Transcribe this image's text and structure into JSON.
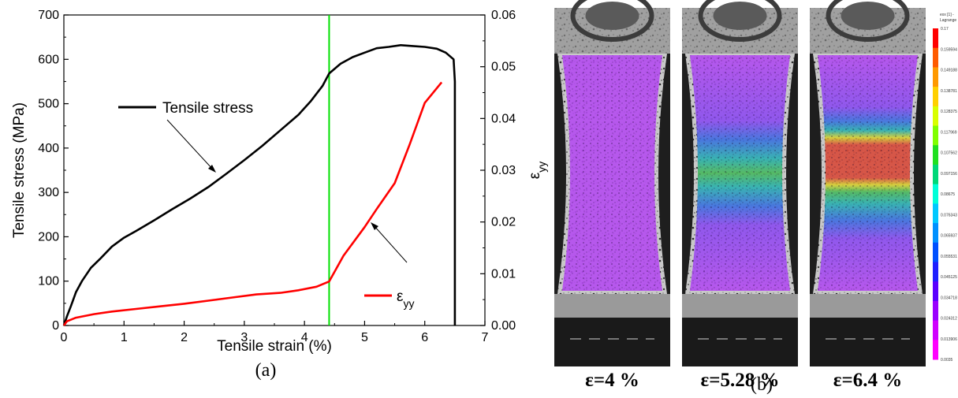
{
  "chart_data": {
    "type": "line",
    "xlabel": "Tensile strain (%)",
    "ylabel": "Tensile stress (MPa)",
    "y2label": "ε",
    "y2label_sub": "yy",
    "xlim": [
      0,
      7
    ],
    "ylim": [
      0,
      700
    ],
    "y2lim": [
      0,
      0.06
    ],
    "xticks": [
      "0",
      "1",
      "2",
      "3",
      "4",
      "5",
      "6",
      "7"
    ],
    "yticks": [
      "0",
      "100",
      "200",
      "300",
      "400",
      "500",
      "600",
      "700"
    ],
    "y2ticks": [
      "0.00",
      "0.01",
      "0.02",
      "0.03",
      "0.04",
      "0.05",
      "0.06"
    ],
    "marker_line_x": 4.41,
    "series": [
      {
        "name": "Tensile stress",
        "axis": "left",
        "color": "#000000",
        "x": [
          0,
          0.05,
          0.12,
          0.2,
          0.3,
          0.45,
          0.6,
          0.8,
          1.0,
          1.2,
          1.5,
          1.8,
          2.1,
          2.4,
          2.7,
          3.0,
          3.3,
          3.6,
          3.9,
          4.1,
          4.3,
          4.41,
          4.6,
          4.8,
          5.0,
          5.2,
          5.4,
          5.6,
          5.8,
          6.0,
          6.2,
          6.35,
          6.48,
          6.5,
          6.5
        ],
        "y": [
          0,
          20,
          45,
          75,
          100,
          130,
          150,
          178,
          198,
          213,
          237,
          262,
          286,
          312,
          342,
          373,
          405,
          440,
          475,
          505,
          540,
          568,
          590,
          605,
          615,
          625,
          628,
          632,
          630,
          628,
          624,
          615,
          600,
          550,
          0
        ]
      },
      {
        "name": "εyy",
        "name_main": "ε",
        "name_sub": "yy",
        "axis": "right",
        "color": "#ff0000",
        "x": [
          0,
          0.05,
          0.2,
          0.5,
          0.8,
          1.2,
          1.6,
          2.0,
          2.4,
          2.8,
          3.2,
          3.6,
          3.9,
          4.2,
          4.41,
          4.65,
          5.0,
          5.2,
          5.5,
          5.75,
          6.0,
          6.28
        ],
        "y": [
          0,
          0.0008,
          0.0015,
          0.0022,
          0.0027,
          0.0032,
          0.0037,
          0.0042,
          0.0048,
          0.0054,
          0.006,
          0.0063,
          0.0068,
          0.0075,
          0.0085,
          0.0135,
          0.019,
          0.0225,
          0.0275,
          0.035,
          0.043,
          0.047
        ]
      }
    ]
  },
  "captions": {
    "a": "(a)",
    "b": "(b)"
  },
  "panels": [
    {
      "label": "ε=4 %",
      "band": "low"
    },
    {
      "label": "ε=5.28 %",
      "band": "mid"
    },
    {
      "label": "ε=6.4 %",
      "band": "high"
    }
  ],
  "scale_bar": {
    "title_line1": "exx [1] -",
    "title_line2": "Lagrange",
    "values": [
      "0.17",
      "0.159594",
      "0.149188",
      "0.138781",
      "0.128375",
      "0.117969",
      "0.107562",
      "0.097156",
      "0.08675",
      "0.076343",
      "0.065937",
      "0.055531",
      "0.045125",
      "0.034718",
      "0.024312",
      "0.013906",
      "0.0035"
    ],
    "colors": [
      "#ff0000",
      "#ff5a00",
      "#ff9900",
      "#ffd000",
      "#d8ff00",
      "#80ff00",
      "#20e020",
      "#00d878",
      "#00ffd8",
      "#00c8ff",
      "#0090ff",
      "#0050ff",
      "#2020ff",
      "#5a00ff",
      "#9a00ff",
      "#d000ff",
      "#ff00ff"
    ]
  }
}
